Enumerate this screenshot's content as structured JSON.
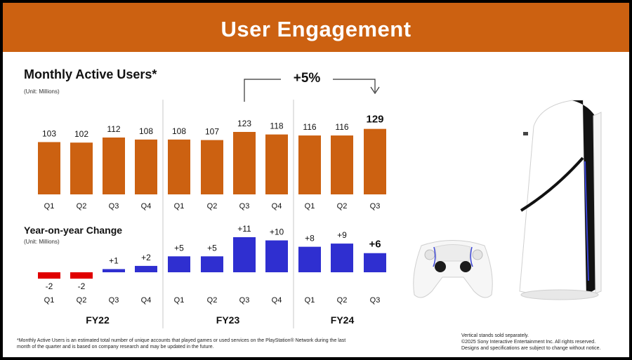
{
  "header": {
    "title": "User Engagement"
  },
  "mau_section": {
    "title": "Monthly Active Users*",
    "unit": "(Unit: Millions)"
  },
  "yoy_section": {
    "title": "Year-on-year Change",
    "unit": "(Unit: Millions)"
  },
  "callout": {
    "text": "+5%"
  },
  "chart_data": [
    {
      "type": "bar",
      "title": "Monthly Active Users*",
      "unit": "(Unit: Millions)",
      "categories": [
        "Q1",
        "Q2",
        "Q3",
        "Q4",
        "Q1",
        "Q2",
        "Q3",
        "Q4",
        "Q1",
        "Q2",
        "Q3"
      ],
      "groups": [
        {
          "label": "FY22",
          "count": 4
        },
        {
          "label": "FY23",
          "count": 4
        },
        {
          "label": "FY24",
          "count": 3
        }
      ],
      "values": [
        103,
        102,
        112,
        108,
        108,
        107,
        123,
        118,
        116,
        116,
        129
      ],
      "data_labels": [
        "103",
        "102",
        "112",
        "108",
        "108",
        "107",
        "123",
        "118",
        "116",
        "116",
        "129"
      ],
      "color": "#cc6111",
      "annotation": {
        "text": "+5%",
        "from_index": 6,
        "to_index": 10
      }
    },
    {
      "type": "bar",
      "title": "Year-on-year Change",
      "unit": "(Unit: Millions)",
      "categories": [
        "Q1",
        "Q2",
        "Q3",
        "Q4",
        "Q1",
        "Q2",
        "Q3",
        "Q4",
        "Q1",
        "Q2",
        "Q3"
      ],
      "values": [
        -2,
        -2,
        1,
        2,
        5,
        5,
        11,
        10,
        8,
        9,
        6
      ],
      "data_labels": [
        "-2",
        "-2",
        "+1",
        "+2",
        "+5",
        "+5",
        "+11",
        "+10",
        "+8",
        "+9",
        "+6"
      ],
      "colors": {
        "positive": "#2f2fd0",
        "negative": "#e00000"
      }
    }
  ],
  "footer": {
    "footnote": "*Monthly Active Users is an estimated total number of unique accounts that played games or used services on the PlayStation® Network during the last month of the quarter and is based on company research and may be updated in the future.",
    "legal": [
      "Vertical stands sold separately.",
      "©2025 Sony Interactive Entertainment Inc. All rights reserved.",
      "Designs and specifications are subject to change without notice."
    ]
  }
}
